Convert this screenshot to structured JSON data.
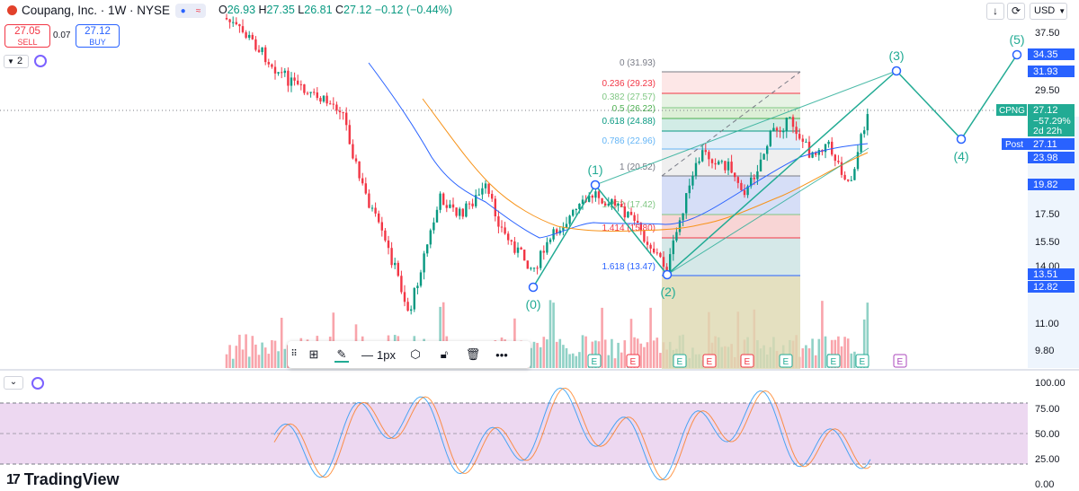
{
  "header": {
    "title": "Coupang, Inc. · 1W · NYSE",
    "pill_icon1": "≈",
    "ohlc": {
      "o_label": "O",
      "o": "26.93",
      "h_label": "H",
      "h": "27.35",
      "l_label": "L",
      "l": "26.81",
      "c_label": "C",
      "c": "27.12",
      "change": "−0.12 (−0.44%)"
    }
  },
  "trade": {
    "sell_price": "27.05",
    "sell_label": "SELL",
    "buy_price": "27.12",
    "buy_label": "BUY",
    "spread": "0.07",
    "indicator_count": "2"
  },
  "top_right": {
    "currency": "USD",
    "download_icon": "download-icon",
    "fullscreen_icon": "fullscreen-icon"
  },
  "price_axis": {
    "ticks": [
      "37.50",
      "29.50",
      "17.50",
      "15.50",
      "14.00",
      "11.00",
      "9.80"
    ],
    "labels": [
      {
        "text": "34.35",
        "bg": "#2962ff"
      },
      {
        "text": "31.93",
        "bg": "#2962ff"
      },
      {
        "text": "23.98",
        "bg": "#2962ff"
      },
      {
        "text": "19.82",
        "bg": "#2962ff"
      },
      {
        "text": "13.51",
        "bg": "#2962ff"
      },
      {
        "text": "12.82",
        "bg": "#2962ff"
      }
    ],
    "cpng": {
      "tag": "CPNG",
      "price": "27.12",
      "pct": "−57.29%",
      "countdown": "2d 22h"
    },
    "post": {
      "tag": "Post",
      "price": "27.11"
    }
  },
  "fib": [
    {
      "label": "0 (31.93)",
      "color": "#787b86"
    },
    {
      "label": "0.236 (29.23)",
      "color": "#f23645"
    },
    {
      "label": "0.382 (27.57)",
      "color": "#81c784"
    },
    {
      "label": "0.5 (26.22)",
      "color": "#4caf50"
    },
    {
      "label": "0.618 (24.88)",
      "color": "#089981"
    },
    {
      "label": "0.786 (22.96)",
      "color": "#64b5f6"
    },
    {
      "label": "1 (20.52)",
      "color": "#787b86"
    },
    {
      "label": "1.272 (17.42)",
      "color": "#81c784"
    },
    {
      "label": "1.414 (15.80)",
      "color": "#f23645"
    },
    {
      "label": "1.618 (13.47)",
      "color": "#2962ff"
    }
  ],
  "elliott": [
    "(0)",
    "(1)",
    "(2)",
    "(3)",
    "(4)",
    "(5)"
  ],
  "earnings_marker": "E",
  "drawing_toolbar": {
    "width_label": "1px"
  },
  "oscillator": {
    "ticks": [
      "100.00",
      "75.00",
      "50.00",
      "25.00",
      "0.00"
    ]
  },
  "branding": {
    "logo_text": "TradingView",
    "mark": "17"
  },
  "colors": {
    "up": "#089981",
    "down": "#f23645",
    "accent": "#2962ff",
    "osc_band": "#e1bee7"
  }
}
